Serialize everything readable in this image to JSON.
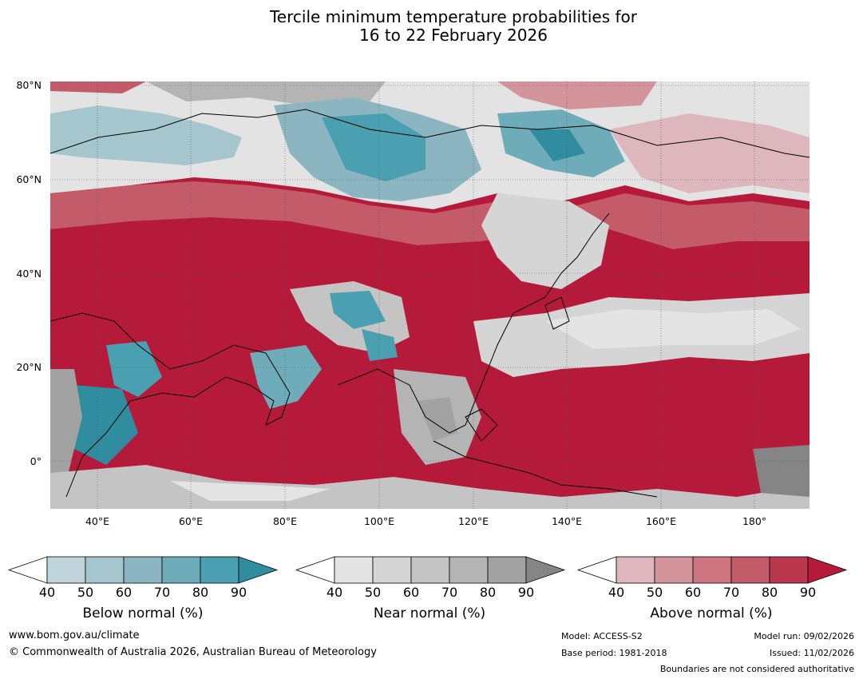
{
  "title": {
    "line1": "Tercile minimum temperature probabilities for",
    "line2": "16 to 22 February 2026"
  },
  "map": {
    "lat_labels": [
      "80°N",
      "60°N",
      "40°N",
      "20°N",
      "0°"
    ],
    "lon_labels": [
      "40°E",
      "60°E",
      "80°E",
      "100°E",
      "120°E",
      "140°E",
      "160°E",
      "180°"
    ],
    "colors": {
      "above_90": "#b51a3a",
      "ocean_base": "#b51a3a",
      "grid": "#555555",
      "coast": "#000000",
      "border": "#888888"
    }
  },
  "legends": [
    {
      "title": "Below normal (%)",
      "ticks": [
        "40",
        "50",
        "60",
        "70",
        "80",
        "90"
      ],
      "colors": [
        "#bfd4da",
        "#a6c6cd",
        "#8bb6c1",
        "#6eacb9",
        "#4a9fb0",
        "#2f8d9f"
      ]
    },
    {
      "title": "Near normal (%)",
      "ticks": [
        "40",
        "50",
        "60",
        "70",
        "80",
        "90"
      ],
      "colors": [
        "#e4e4e4",
        "#d5d5d5",
        "#c4c4c4",
        "#b4b4b4",
        "#a2a2a2",
        "#858585"
      ]
    },
    {
      "title": "Above normal (%)",
      "ticks": [
        "40",
        "50",
        "60",
        "70",
        "80",
        "90"
      ],
      "colors": [
        "#ddb7bd",
        "#d4949c",
        "#cd7580",
        "#c45b68",
        "#b9384e",
        "#b51a3a"
      ]
    }
  ],
  "footer": {
    "url": "www.bom.gov.au/climate",
    "copyright": "© Commonwealth of Australia 2026, Australian Bureau of Meteorology",
    "model": "Model: ACCESS-S2",
    "base_period": "Base period: 1981-2018",
    "model_run": "Model run: 09/02/2026",
    "issued": "Issued: 11/02/2026",
    "boundaries": "Boundaries are not considered authoritative"
  }
}
